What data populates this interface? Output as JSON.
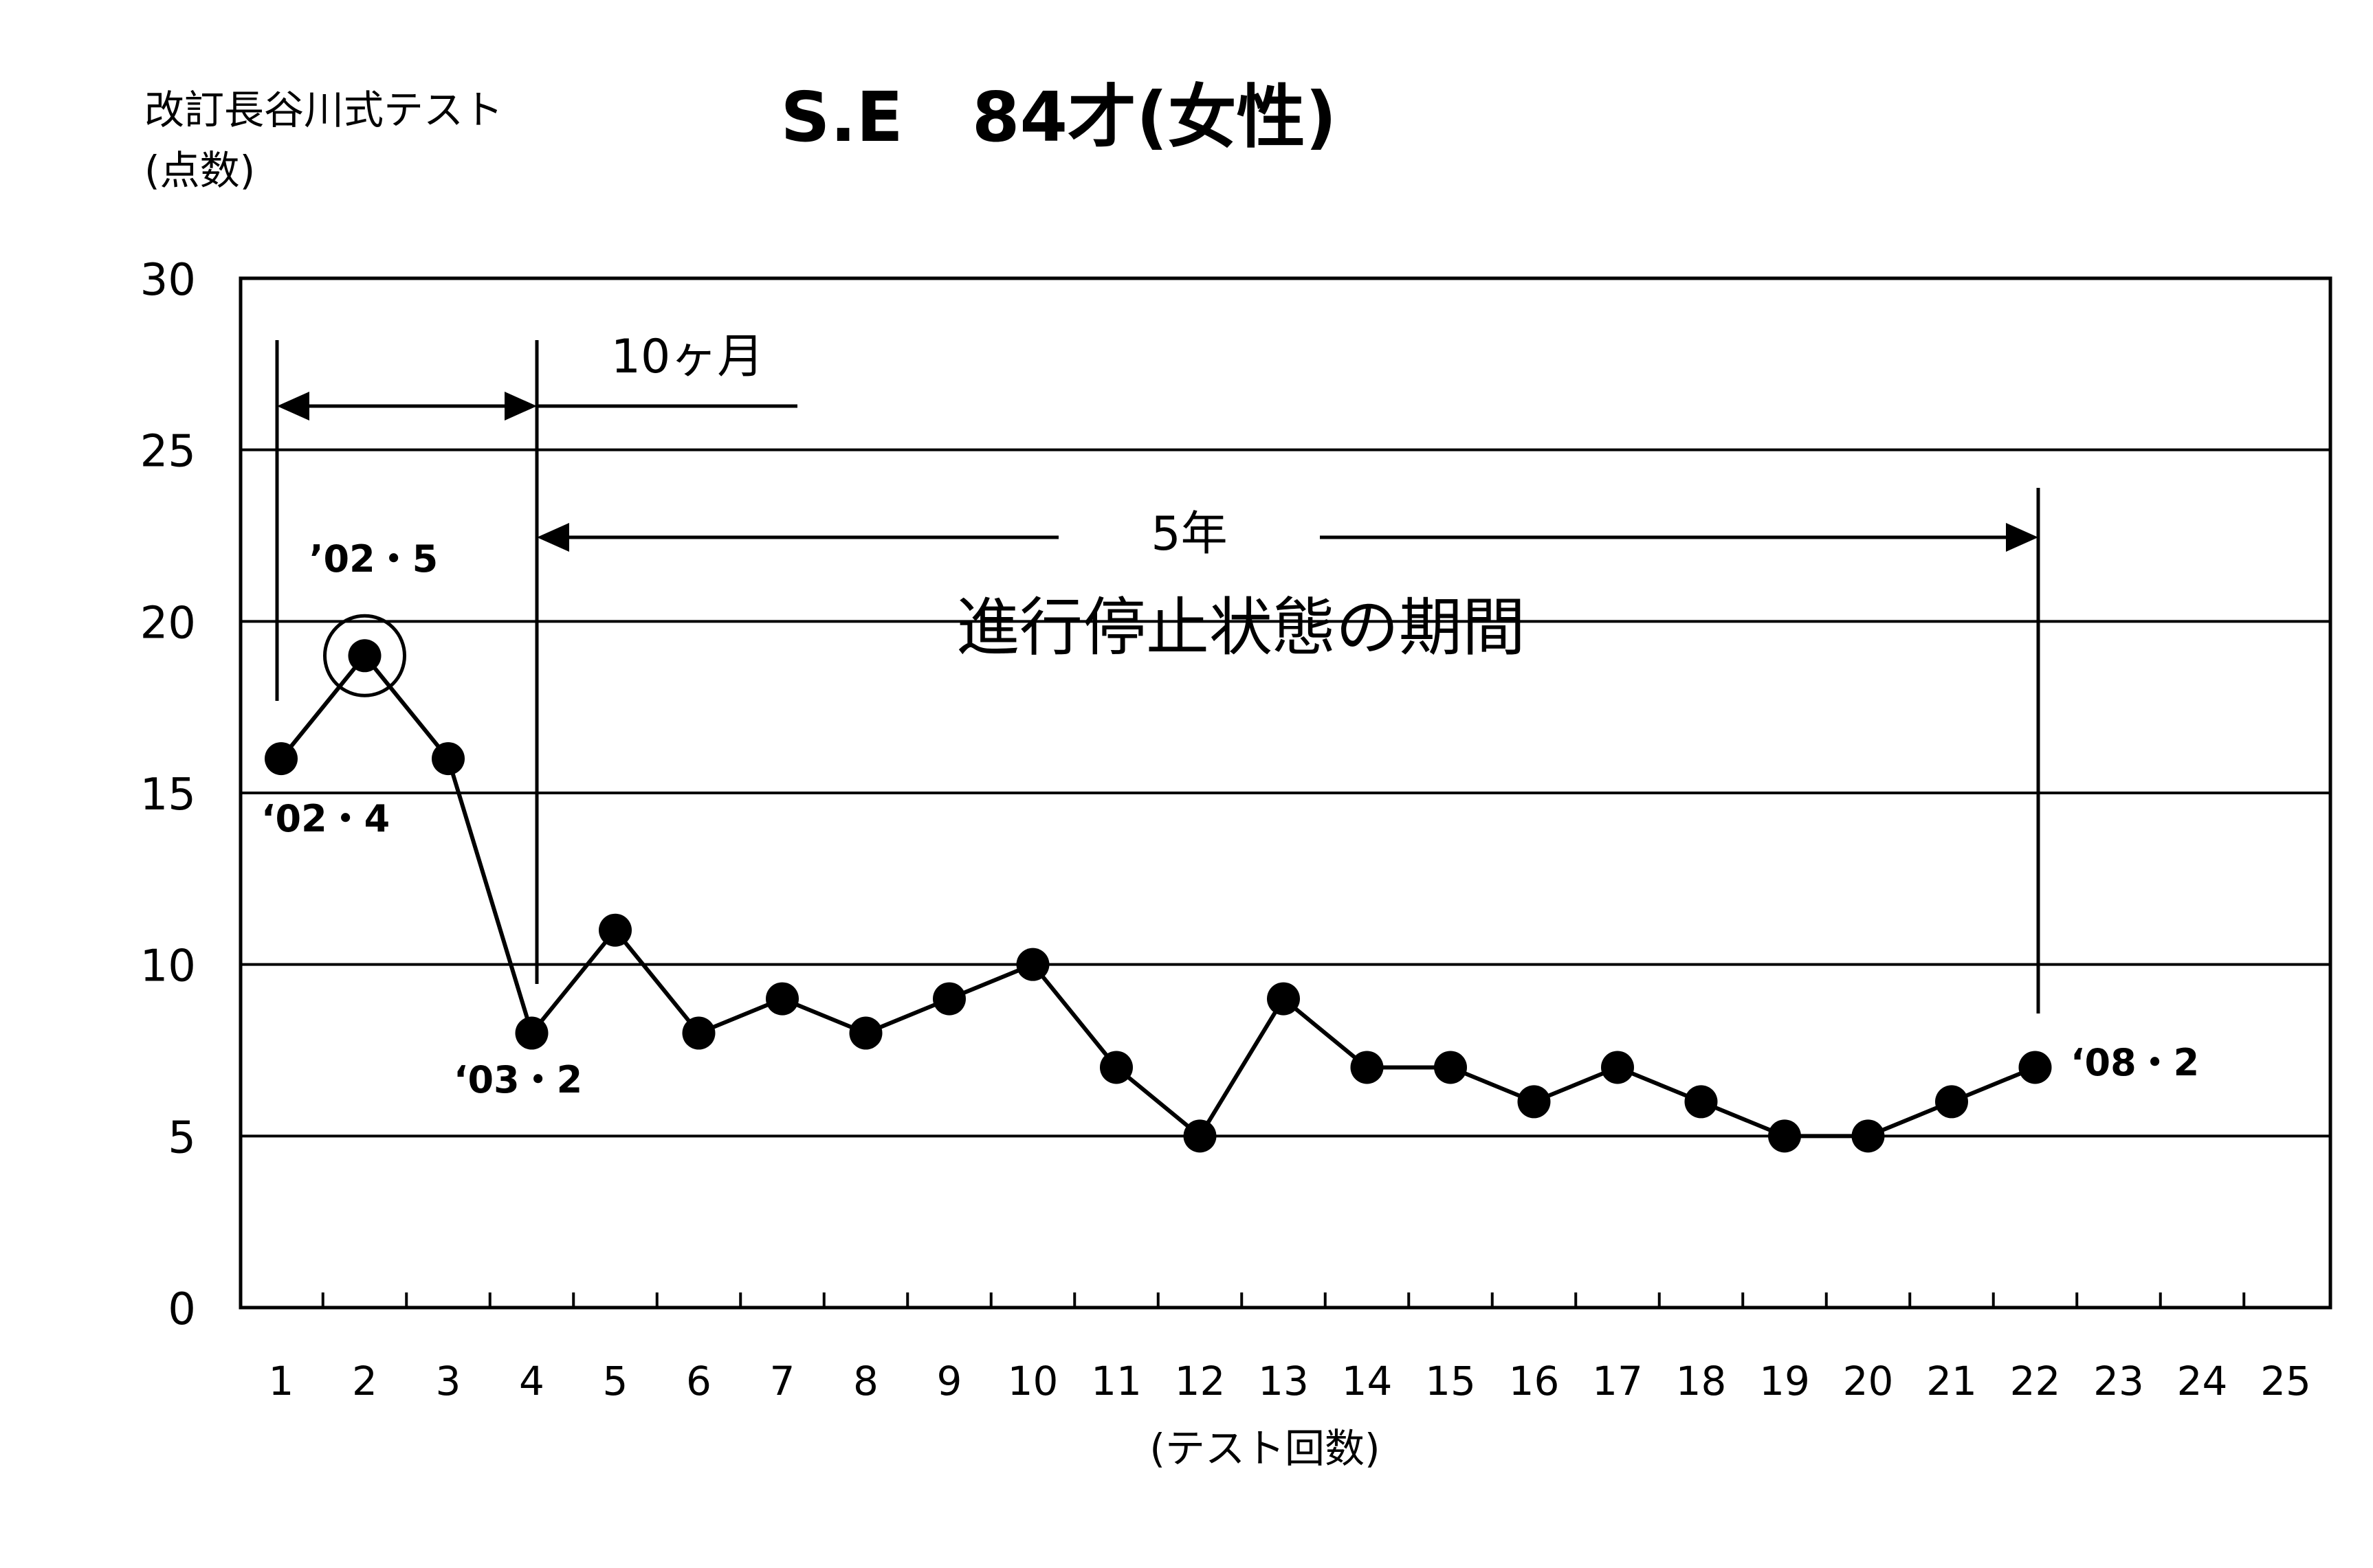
{
  "chart_data": {
    "type": "line",
    "title": "S.E　84才(女性)",
    "ylabel_line1": "改訂長谷川式テスト",
    "ylabel_line2": "(点数)",
    "xlabel": "(テスト回数)",
    "ylim": [
      0,
      30
    ],
    "yticks": [
      "0",
      "5",
      "10",
      "15",
      "20",
      "25",
      "30"
    ],
    "xlim": [
      1,
      25
    ],
    "xticks": [
      "1",
      "2",
      "3",
      "4",
      "5",
      "6",
      "7",
      "8",
      "9",
      "10",
      "11",
      "12",
      "13",
      "14",
      "15",
      "16",
      "17",
      "18",
      "19",
      "20",
      "21",
      "22",
      "23",
      "24",
      "25"
    ],
    "grid": "horizontal",
    "series": [
      {
        "x": [
          1,
          2,
          3,
          4,
          5,
          6,
          7,
          8,
          9,
          10,
          11,
          12,
          13,
          14,
          15,
          16,
          17,
          18,
          19,
          20,
          21,
          22
        ],
        "y": [
          16,
          19,
          16,
          8,
          11,
          8,
          9,
          8,
          9,
          10,
          7,
          5,
          9,
          7,
          7,
          6,
          7,
          6,
          5,
          5,
          6,
          7
        ]
      }
    ],
    "annotations": {
      "first_point": "‘02・4",
      "peak_point": "’02・5",
      "drop_point": "‘03・2",
      "last_point": "‘08・2",
      "span_months": "10ヶ月",
      "span_years": "5年",
      "plateau": "進行停止状態の期間"
    }
  }
}
